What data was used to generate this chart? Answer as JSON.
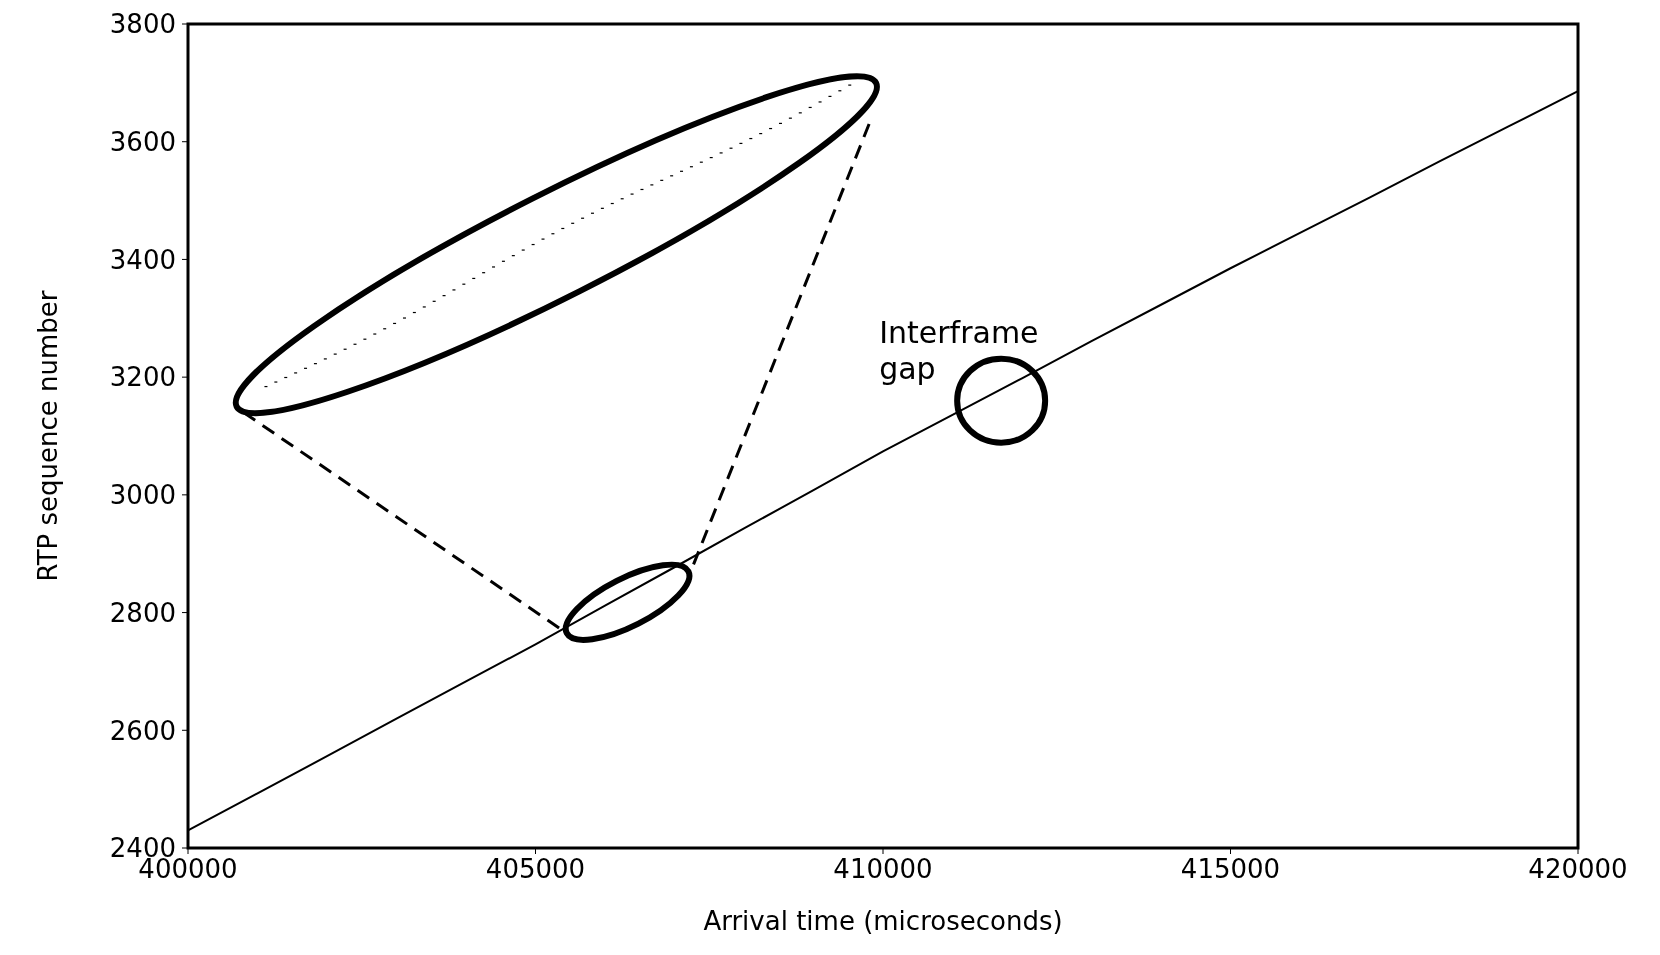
{
  "chart_data": {
    "type": "line",
    "xlabel": "Arrival time (microseconds)",
    "ylabel": "RTP sequence number",
    "x": [
      400000,
      401000,
      402000,
      403000,
      404000,
      405000,
      406000,
      407000,
      408000,
      409000,
      410000,
      411000,
      412000,
      413000,
      414000,
      415000,
      416000,
      417000,
      418000,
      419000,
      420000
    ],
    "series": [
      {
        "color": "#000000",
        "values": [
          2430,
          2493,
          2556,
          2620,
          2683,
          2746,
          2812,
          2877,
          2943,
          3008,
          3074,
          3136,
          3198,
          3261,
          3323,
          3385,
          3445,
          3505,
          3566,
          3626,
          3686
        ]
      }
    ],
    "xlim": [
      400000,
      420000
    ],
    "xticks": [
      400000,
      405000,
      410000,
      415000,
      420000
    ],
    "ylim": [
      2400,
      3800
    ],
    "yticks": [
      2400,
      2600,
      2800,
      3000,
      3200,
      3400,
      3600,
      3800
    ],
    "grid": false,
    "legend": false,
    "marker": "none",
    "line_style": "solid",
    "annotations": [
      "Interframe gap"
    ]
  }
}
